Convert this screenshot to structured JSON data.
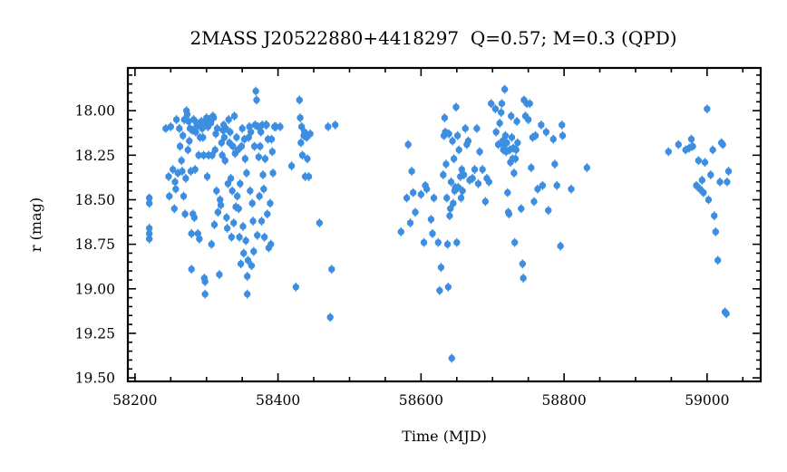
{
  "chart_data": {
    "type": "scatter",
    "title": "2MASS J20522880+4418297  Q=0.57; M=0.3 (QPD)",
    "xlabel": "Time (MJD)",
    "ylabel": "r (mag)",
    "xlim": [
      58190,
      59075
    ],
    "ylim": [
      19.52,
      17.76
    ],
    "y_inverted": true,
    "grid": false,
    "x_ticks": [
      "58200",
      "58400",
      "58600",
      "58800",
      "59000"
    ],
    "y_ticks": [
      "18.00",
      "18.25",
      "18.50",
      "18.75",
      "19.00",
      "19.25",
      "19.50"
    ],
    "colors": {
      "points": "#3d8ee0",
      "axes": "#000000"
    },
    "error": 0.025,
    "points": [
      [
        58220,
        18.49
      ],
      [
        58220,
        18.52
      ],
      [
        58220,
        18.66
      ],
      [
        58220,
        18.69
      ],
      [
        58220,
        18.72
      ],
      [
        58243,
        18.1
      ],
      [
        58247,
        18.37
      ],
      [
        58248,
        18.48
      ],
      [
        58250,
        18.09
      ],
      [
        58253,
        18.33
      ],
      [
        58255,
        18.55
      ],
      [
        58256,
        18.4
      ],
      [
        58257,
        18.44
      ],
      [
        58258,
        18.05
      ],
      [
        58260,
        18.35
      ],
      [
        58262,
        18.1
      ],
      [
        58263,
        18.2
      ],
      [
        58265,
        18.28
      ],
      [
        58266,
        18.34
      ],
      [
        58267,
        18.14
      ],
      [
        58268,
        18.48
      ],
      [
        58269,
        18.05
      ],
      [
        58270,
        18.58
      ],
      [
        58271,
        18.38
      ],
      [
        58272,
        18.0
      ],
      [
        58273,
        18.02
      ],
      [
        58274,
        18.22
      ],
      [
        58275,
        18.06
      ],
      [
        58276,
        18.17
      ],
      [
        58277,
        18.1
      ],
      [
        58278,
        18.34
      ],
      [
        58279,
        18.69
      ],
      [
        58279,
        18.89
      ],
      [
        58280,
        18.11
      ],
      [
        58281,
        18.58
      ],
      [
        58282,
        18.05
      ],
      [
        58283,
        18.6
      ],
      [
        58284,
        18.33
      ],
      [
        58285,
        18.12
      ],
      [
        58286,
        18.09
      ],
      [
        58287,
        18.07
      ],
      [
        58288,
        18.69
      ],
      [
        58289,
        18.25
      ],
      [
        58290,
        18.72
      ],
      [
        58291,
        18.15
      ],
      [
        58292,
        18.08
      ],
      [
        58293,
        18.06
      ],
      [
        58294,
        18.1
      ],
      [
        58295,
        18.15
      ],
      [
        58296,
        18.25
      ],
      [
        58297,
        18.94
      ],
      [
        58298,
        19.03
      ],
      [
        58298,
        18.96
      ],
      [
        58299,
        18.07
      ],
      [
        58300,
        18.04
      ],
      [
        58301,
        18.37
      ],
      [
        58302,
        18.09
      ],
      [
        58303,
        18.25
      ],
      [
        58304,
        18.05
      ],
      [
        58305,
        18.06
      ],
      [
        58306,
        18.07
      ],
      [
        58307,
        18.75
      ],
      [
        58308,
        18.25
      ],
      [
        58309,
        18.03
      ],
      [
        58310,
        18.04
      ],
      [
        58311,
        18.64
      ],
      [
        58312,
        18.22
      ],
      [
        58313,
        18.13
      ],
      [
        58314,
        18.45
      ],
      [
        58315,
        18.1
      ],
      [
        58316,
        18.57
      ],
      [
        58318,
        18.92
      ],
      [
        58319,
        18.5
      ],
      [
        58320,
        18.53
      ],
      [
        58321,
        18.18
      ],
      [
        58322,
        18.25
      ],
      [
        58323,
        18.11
      ],
      [
        58324,
        18.08
      ],
      [
        58325,
        18.15
      ],
      [
        58326,
        18.28
      ],
      [
        58327,
        18.1
      ],
      [
        58328,
        18.6
      ],
      [
        58329,
        18.66
      ],
      [
        58330,
        18.41
      ],
      [
        58331,
        18.05
      ],
      [
        58332,
        18.18
      ],
      [
        58333,
        18.12
      ],
      [
        58334,
        18.38
      ],
      [
        58335,
        18.71
      ],
      [
        58336,
        18.45
      ],
      [
        58337,
        18.2
      ],
      [
        58338,
        18.63
      ],
      [
        58339,
        18.03
      ],
      [
        58340,
        18.24
      ],
      [
        58341,
        18.54
      ],
      [
        58342,
        18.15
      ],
      [
        58343,
        18.48
      ],
      [
        58344,
        18.22
      ],
      [
        58345,
        18.55
      ],
      [
        58346,
        18.71
      ],
      [
        58347,
        18.41
      ],
      [
        58348,
        18.86
      ],
      [
        58349,
        18.2
      ],
      [
        58350,
        18.1
      ],
      [
        58351,
        18.65
      ],
      [
        58352,
        18.8
      ],
      [
        58353,
        18.16
      ],
      [
        58354,
        18.27
      ],
      [
        58355,
        18.73
      ],
      [
        58356,
        18.35
      ],
      [
        58357,
        19.03
      ],
      [
        58357,
        18.93
      ],
      [
        58358,
        18.84
      ],
      [
        58359,
        18.15
      ],
      [
        58360,
        18.09
      ],
      [
        58361,
        18.45
      ],
      [
        58362,
        18.12
      ],
      [
        58363,
        18.87
      ],
      [
        58364,
        18.52
      ],
      [
        58365,
        18.62
      ],
      [
        58366,
        18.79
      ],
      [
        58367,
        18.2
      ],
      [
        58368,
        18.08
      ],
      [
        58369,
        17.89
      ],
      [
        58370,
        17.94
      ],
      [
        58371,
        18.7
      ],
      [
        58372,
        18.09
      ],
      [
        58373,
        18.26
      ],
      [
        58374,
        18.48
      ],
      [
        58375,
        18.2
      ],
      [
        58376,
        18.12
      ],
      [
        58377,
        18.62
      ],
      [
        58378,
        18.08
      ],
      [
        58379,
        18.36
      ],
      [
        58380,
        18.44
      ],
      [
        58381,
        18.71
      ],
      [
        58382,
        18.27
      ],
      [
        58383,
        18.08
      ],
      [
        58384,
        18.08
      ],
      [
        58385,
        18.58
      ],
      [
        58386,
        18.16
      ],
      [
        58387,
        18.77
      ],
      [
        58389,
        18.52
      ],
      [
        58390,
        18.75
      ],
      [
        58391,
        18.16
      ],
      [
        58392,
        18.23
      ],
      [
        58393,
        18.35
      ],
      [
        58395,
        18.09
      ],
      [
        58397,
        18.09
      ],
      [
        58403,
        18.09
      ],
      [
        58419,
        18.31
      ],
      [
        58425,
        18.99
      ],
      [
        58430,
        17.94
      ],
      [
        58431,
        18.04
      ],
      [
        58432,
        18.18
      ],
      [
        58433,
        18.09
      ],
      [
        58434,
        18.25
      ],
      [
        58436,
        18.14
      ],
      [
        58437,
        18.12
      ],
      [
        58438,
        18.37
      ],
      [
        58440,
        18.15
      ],
      [
        58441,
        18.27
      ],
      [
        58443,
        18.37
      ],
      [
        58445,
        18.13
      ],
      [
        58458,
        18.63
      ],
      [
        58470,
        18.09
      ],
      [
        58473,
        19.16
      ],
      [
        58475,
        18.89
      ],
      [
        58480,
        18.08
      ],
      [
        58572,
        18.68
      ],
      [
        58580,
        18.49
      ],
      [
        58582,
        18.19
      ],
      [
        58585,
        18.63
      ],
      [
        58587,
        18.34
      ],
      [
        58589,
        18.46
      ],
      [
        58592,
        18.57
      ],
      [
        58600,
        18.47
      ],
      [
        58604,
        18.74
      ],
      [
        58606,
        18.42
      ],
      [
        58608,
        18.44
      ],
      [
        58614,
        18.61
      ],
      [
        58616,
        18.69
      ],
      [
        58618,
        18.49
      ],
      [
        58624,
        18.74
      ],
      [
        58626,
        19.01
      ],
      [
        58628,
        18.88
      ],
      [
        58631,
        18.36
      ],
      [
        58632,
        18.14
      ],
      [
        58633,
        18.04
      ],
      [
        58634,
        18.12
      ],
      [
        58635,
        18.3
      ],
      [
        58636,
        18.49
      ],
      [
        58637,
        18.75
      ],
      [
        58638,
        18.99
      ],
      [
        58639,
        18.13
      ],
      [
        58640,
        18.59
      ],
      [
        58641,
        18.55
      ],
      [
        58642,
        18.4
      ],
      [
        58643,
        19.39
      ],
      [
        58644,
        18.17
      ],
      [
        58645,
        18.52
      ],
      [
        58646,
        18.27
      ],
      [
        58647,
        18.45
      ],
      [
        58648,
        18.43
      ],
      [
        58649,
        17.98
      ],
      [
        58650,
        18.74
      ],
      [
        58651,
        18.14
      ],
      [
        58652,
        18.43
      ],
      [
        58653,
        18.22
      ],
      [
        58655,
        18.37
      ],
      [
        58656,
        18.49
      ],
      [
        58657,
        18.33
      ],
      [
        58658,
        18.45
      ],
      [
        58660,
        18.36
      ],
      [
        58662,
        18.1
      ],
      [
        58664,
        18.19
      ],
      [
        58666,
        18.17
      ],
      [
        58668,
        18.39
      ],
      [
        58672,
        18.38
      ],
      [
        58675,
        18.33
      ],
      [
        58678,
        18.1
      ],
      [
        58680,
        18.41
      ],
      [
        58682,
        18.23
      ],
      [
        58686,
        18.33
      ],
      [
        58690,
        18.51
      ],
      [
        58692,
        18.38
      ],
      [
        58695,
        18.4
      ],
      [
        58698,
        17.96
      ],
      [
        58704,
        17.99
      ],
      [
        58705,
        18.12
      ],
      [
        58708,
        18.19
      ],
      [
        58710,
        18.07
      ],
      [
        58712,
        18.01
      ],
      [
        58713,
        17.96
      ],
      [
        58714,
        18.17
      ],
      [
        58715,
        18.22
      ],
      [
        58716,
        18.2
      ],
      [
        58717,
        17.88
      ],
      [
        58718,
        18.14
      ],
      [
        58719,
        18.23
      ],
      [
        58720,
        18.18
      ],
      [
        58721,
        18.46
      ],
      [
        58722,
        18.57
      ],
      [
        58723,
        18.58
      ],
      [
        58724,
        18.22
      ],
      [
        58725,
        18.29
      ],
      [
        58726,
        18.03
      ],
      [
        58727,
        18.15
      ],
      [
        58728,
        18.27
      ],
      [
        58729,
        18.21
      ],
      [
        58730,
        18.35
      ],
      [
        58731,
        18.74
      ],
      [
        58732,
        18.27
      ],
      [
        58733,
        18.22
      ],
      [
        58734,
        18.06
      ],
      [
        58735,
        18.18
      ],
      [
        58740,
        18.55
      ],
      [
        58742,
        18.86
      ],
      [
        58743,
        18.94
      ],
      [
        58744,
        17.94
      ],
      [
        58746,
        18.03
      ],
      [
        58748,
        17.96
      ],
      [
        58750,
        18.05
      ],
      [
        58752,
        17.96
      ],
      [
        58754,
        18.32
      ],
      [
        58756,
        18.15
      ],
      [
        58758,
        18.51
      ],
      [
        58760,
        18.14
      ],
      [
        58763,
        18.44
      ],
      [
        58768,
        18.08
      ],
      [
        58770,
        18.42
      ],
      [
        58775,
        18.12
      ],
      [
        58778,
        18.56
      ],
      [
        58785,
        18.16
      ],
      [
        58787,
        18.3
      ],
      [
        58790,
        18.42
      ],
      [
        58795,
        18.76
      ],
      [
        58797,
        18.08
      ],
      [
        58798,
        18.14
      ],
      [
        58810,
        18.44
      ],
      [
        58832,
        18.32
      ],
      [
        58946,
        18.23
      ],
      [
        58960,
        18.19
      ],
      [
        58970,
        18.22
      ],
      [
        58975,
        18.21
      ],
      [
        58978,
        18.16
      ],
      [
        58980,
        18.2
      ],
      [
        58985,
        18.42
      ],
      [
        58988,
        18.28
      ],
      [
        58990,
        18.44
      ],
      [
        58993,
        18.39
      ],
      [
        58995,
        18.46
      ],
      [
        58997,
        18.29
      ],
      [
        59000,
        17.99
      ],
      [
        59002,
        18.5
      ],
      [
        59005,
        18.36
      ],
      [
        59008,
        18.22
      ],
      [
        59010,
        18.59
      ],
      [
        59012,
        18.68
      ],
      [
        59015,
        18.84
      ],
      [
        59018,
        18.4
      ],
      [
        59020,
        18.18
      ],
      [
        59022,
        18.19
      ],
      [
        59025,
        19.13
      ],
      [
        59027,
        19.14
      ],
      [
        59028,
        18.4
      ],
      [
        59030,
        18.34
      ]
    ]
  }
}
